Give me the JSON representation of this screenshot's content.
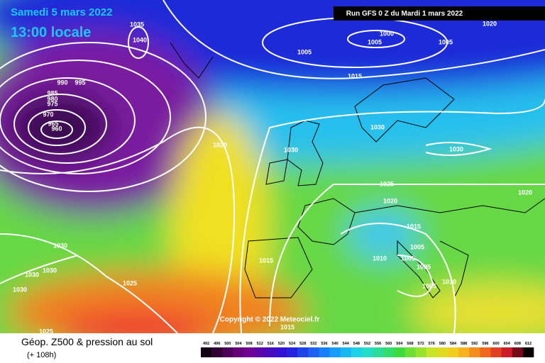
{
  "header": {
    "date": "Samedi 5 mars 2022",
    "time": "13:00 locale",
    "run": "Run GFS 0 Z du Mardi 1 mars 2022"
  },
  "map": {
    "isobar_labels": [
      "1035",
      "1040",
      "1000",
      "1005",
      "1005",
      "1005",
      "1020",
      "1015",
      "990",
      "995",
      "985",
      "980",
      "975",
      "970",
      "965",
      "960",
      "1020",
      "1030",
      "1030",
      "1030",
      "1025",
      "1020",
      "1020",
      "1015",
      "1010",
      "1005",
      "1005",
      "1005",
      "1005",
      "1010",
      "1015",
      "1030",
      "1030",
      "1030",
      "1030",
      "1025",
      "1015",
      "1025"
    ],
    "copyright": "Copyright © 2022 Meteociel.fr"
  },
  "footer": {
    "title": "Géop. Z500 & pression au sol",
    "lead": "(+ 108h)",
    "scale": [
      492,
      496,
      500,
      504,
      508,
      512,
      516,
      520,
      524,
      528,
      532,
      536,
      540,
      544,
      548,
      552,
      556,
      560,
      564,
      568,
      572,
      576,
      580,
      584,
      588,
      592,
      596,
      600,
      604,
      608,
      612
    ]
  }
}
